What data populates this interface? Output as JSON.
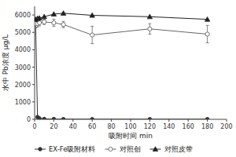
{
  "chart_data": {
    "type": "line",
    "xlabel": "吸附时间 min",
    "ylabel": "水中 Pb浓度 μg/L",
    "xlim": [
      0,
      200
    ],
    "ylim": [
      0,
      6500
    ],
    "xticks": [
      0,
      20,
      40,
      60,
      80,
      100,
      120,
      140,
      160,
      180,
      200
    ],
    "yticks": [
      0,
      1000,
      2000,
      3000,
      4000,
      5000,
      6000
    ],
    "x": [
      1,
      3,
      5,
      10,
      20,
      30,
      60,
      120,
      180
    ],
    "series": [
      {
        "name": "EX-Fe吸附材料",
        "color": "#333333",
        "marker": "circle",
        "values": [
          5700,
          130,
          50,
          20,
          15,
          10,
          8,
          8,
          8
        ]
      },
      {
        "name": "对照创",
        "color": "#666666",
        "marker": "open-circle",
        "values": [
          5500,
          5500,
          5550,
          5600,
          5550,
          5450,
          4850,
          5200,
          4900
        ],
        "yerr": [
          250,
          200,
          180,
          150,
          200,
          180,
          500,
          300,
          500
        ]
      },
      {
        "name": "对照皮带",
        "color": "#222222",
        "marker": "triangle",
        "values": [
          5750,
          5800,
          5820,
          5900,
          6050,
          6100,
          5980,
          5900,
          5750
        ]
      }
    ],
    "legend": "bottom",
    "grid": false
  }
}
